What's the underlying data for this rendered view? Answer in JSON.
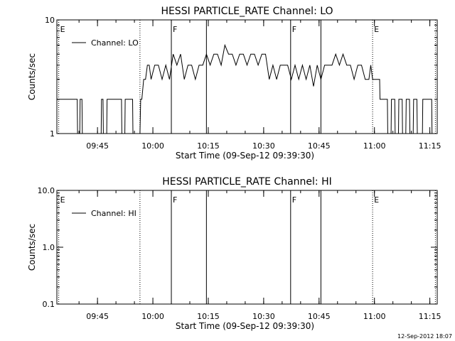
{
  "footer": {
    "timestamp": "12-Sep-2012 18:07"
  },
  "chart_data": [
    {
      "type": "line",
      "title": "HESSI PARTICLE_RATE Channel: LO",
      "xlabel": "Start Time (09-Sep-12 09:39:30)",
      "ylabel": "Counts/sec",
      "yscale": "log",
      "ylim": [
        1,
        10
      ],
      "xlim_minutes": [
        -5.5,
        97.5
      ],
      "x_ticks": [
        {
          "minute": 5.5,
          "label": "09:45"
        },
        {
          "minute": 20.5,
          "label": "10:00"
        },
        {
          "minute": 35.5,
          "label": "10:15"
        },
        {
          "minute": 50.5,
          "label": "10:30"
        },
        {
          "minute": 65.5,
          "label": "10:45"
        },
        {
          "minute": 80.5,
          "label": "11:00"
        },
        {
          "minute": 95.5,
          "label": "11:15"
        }
      ],
      "y_ticks": [
        {
          "value": 1,
          "label": "1"
        },
        {
          "value": 10,
          "label": "10"
        }
      ],
      "grid": false,
      "legend": {
        "position": "top-left",
        "entries": [
          "Channel: LO"
        ]
      },
      "markers": [
        {
          "minute": -5.0,
          "label": "E",
          "style": "dotted"
        },
        {
          "minute": 17.0,
          "label": "",
          "style": "dotted"
        },
        {
          "minute": 25.5,
          "label": "F",
          "style": "solid"
        },
        {
          "minute": 35.0,
          "label": "",
          "style": "solid"
        },
        {
          "minute": 57.8,
          "label": "F",
          "style": "solid"
        },
        {
          "minute": 66.0,
          "label": "",
          "style": "solid"
        },
        {
          "minute": 80.0,
          "label": "E",
          "style": "dotted"
        },
        {
          "minute": 97.0,
          "label": "",
          "style": "dotted"
        }
      ],
      "series": [
        {
          "name": "Channel: LO",
          "x": [
            -5.5,
            0.0,
            0.1,
            0.7,
            0.8,
            1.3,
            1.4,
            6.5,
            6.6,
            7.0,
            7.1,
            8.0,
            8.1,
            12.0,
            12.1,
            12.9,
            13.0,
            15.0,
            15.1,
            17.0,
            17.2,
            17.5,
            18.0,
            18.5,
            19.0,
            19.5,
            20.0,
            21.0,
            22.0,
            23.0,
            24.0,
            25.0,
            26.0,
            27.0,
            28.0,
            29.0,
            30.0,
            31.0,
            32.0,
            33.0,
            34.0,
            35.0,
            36.0,
            37.0,
            38.0,
            39.0,
            40.0,
            41.0,
            42.0,
            43.0,
            44.0,
            45.0,
            46.0,
            47.0,
            48.0,
            49.0,
            50.0,
            51.0,
            52.0,
            53.0,
            54.0,
            55.0,
            56.0,
            57.0,
            58.0,
            59.0,
            60.0,
            61.0,
            62.0,
            63.0,
            64.0,
            65.0,
            66.0,
            67.0,
            68.0,
            69.0,
            70.0,
            71.0,
            72.0,
            73.0,
            74.0,
            75.0,
            76.0,
            77.0,
            78.0,
            79.0,
            79.5,
            80.0,
            81.0,
            81.9,
            82.0,
            84.0,
            84.1,
            85.0,
            85.1,
            86.0,
            86.1,
            87.0,
            87.1,
            88.0,
            88.1,
            89.0,
            89.1,
            90.0,
            90.1,
            91.0,
            91.1,
            92.0,
            92.1,
            93.5,
            93.6,
            96.0,
            96.1,
            97.0
          ],
          "values": [
            2.0,
            2.0,
            1.0,
            1.0,
            2.0,
            2.0,
            1.0,
            1.0,
            2.0,
            2.0,
            1.0,
            1.0,
            2.0,
            2.0,
            1.0,
            1.0,
            2.0,
            2.0,
            1.0,
            1.0,
            2.0,
            2.0,
            3.0,
            3.0,
            4.0,
            4.0,
            3.0,
            4.0,
            4.0,
            3.0,
            4.0,
            3.0,
            5.0,
            4.0,
            5.0,
            3.0,
            4.0,
            4.0,
            3.0,
            4.0,
            4.0,
            5.0,
            4.0,
            5.0,
            5.0,
            4.0,
            6.0,
            5.0,
            5.0,
            4.0,
            5.0,
            5.0,
            4.0,
            5.0,
            5.0,
            4.0,
            5.0,
            5.0,
            3.0,
            4.0,
            3.0,
            4.0,
            4.0,
            4.0,
            3.0,
            4.0,
            3.0,
            4.0,
            3.0,
            4.0,
            2.6,
            4.0,
            3.0,
            4.0,
            4.0,
            4.0,
            5.0,
            4.0,
            5.0,
            4.0,
            4.0,
            3.0,
            4.0,
            4.0,
            3.0,
            3.0,
            4.0,
            3.0,
            3.0,
            3.0,
            2.0,
            2.0,
            1.0,
            1.0,
            2.0,
            2.0,
            1.0,
            1.0,
            2.0,
            2.0,
            1.0,
            1.0,
            2.0,
            2.0,
            1.0,
            1.0,
            2.0,
            2.0,
            1.0,
            1.0,
            2.0,
            2.0,
            1.0,
            1.0
          ]
        }
      ]
    },
    {
      "type": "line",
      "title": "HESSI PARTICLE_RATE Channel: HI",
      "xlabel": "Start Time (09-Sep-12 09:39:30)",
      "ylabel": "Counts/sec",
      "yscale": "log",
      "ylim": [
        0.1,
        10
      ],
      "xlim_minutes": [
        -5.5,
        97.5
      ],
      "x_ticks": [
        {
          "minute": 5.5,
          "label": "09:45"
        },
        {
          "minute": 20.5,
          "label": "10:00"
        },
        {
          "minute": 35.5,
          "label": "10:15"
        },
        {
          "minute": 50.5,
          "label": "10:30"
        },
        {
          "minute": 65.5,
          "label": "10:45"
        },
        {
          "minute": 80.5,
          "label": "11:00"
        },
        {
          "minute": 95.5,
          "label": "11:15"
        }
      ],
      "y_ticks": [
        {
          "value": 0.1,
          "label": "0.1"
        },
        {
          "value": 1,
          "label": "1.0"
        },
        {
          "value": 10,
          "label": "10.0"
        }
      ],
      "grid": false,
      "legend": {
        "position": "top-left",
        "entries": [
          "Channel: HI"
        ]
      },
      "markers": [
        {
          "minute": -5.0,
          "label": "E",
          "style": "dotted"
        },
        {
          "minute": 17.0,
          "label": "",
          "style": "dotted"
        },
        {
          "minute": 25.5,
          "label": "F",
          "style": "solid"
        },
        {
          "minute": 35.0,
          "label": "",
          "style": "solid"
        },
        {
          "minute": 57.8,
          "label": "F",
          "style": "solid"
        },
        {
          "minute": 66.0,
          "label": "",
          "style": "solid"
        },
        {
          "minute": 80.0,
          "label": "E",
          "style": "dotted"
        },
        {
          "minute": 97.0,
          "label": "",
          "style": "dotted"
        }
      ],
      "series": [
        {
          "name": "Channel: HI",
          "x": [],
          "values": []
        }
      ]
    }
  ]
}
